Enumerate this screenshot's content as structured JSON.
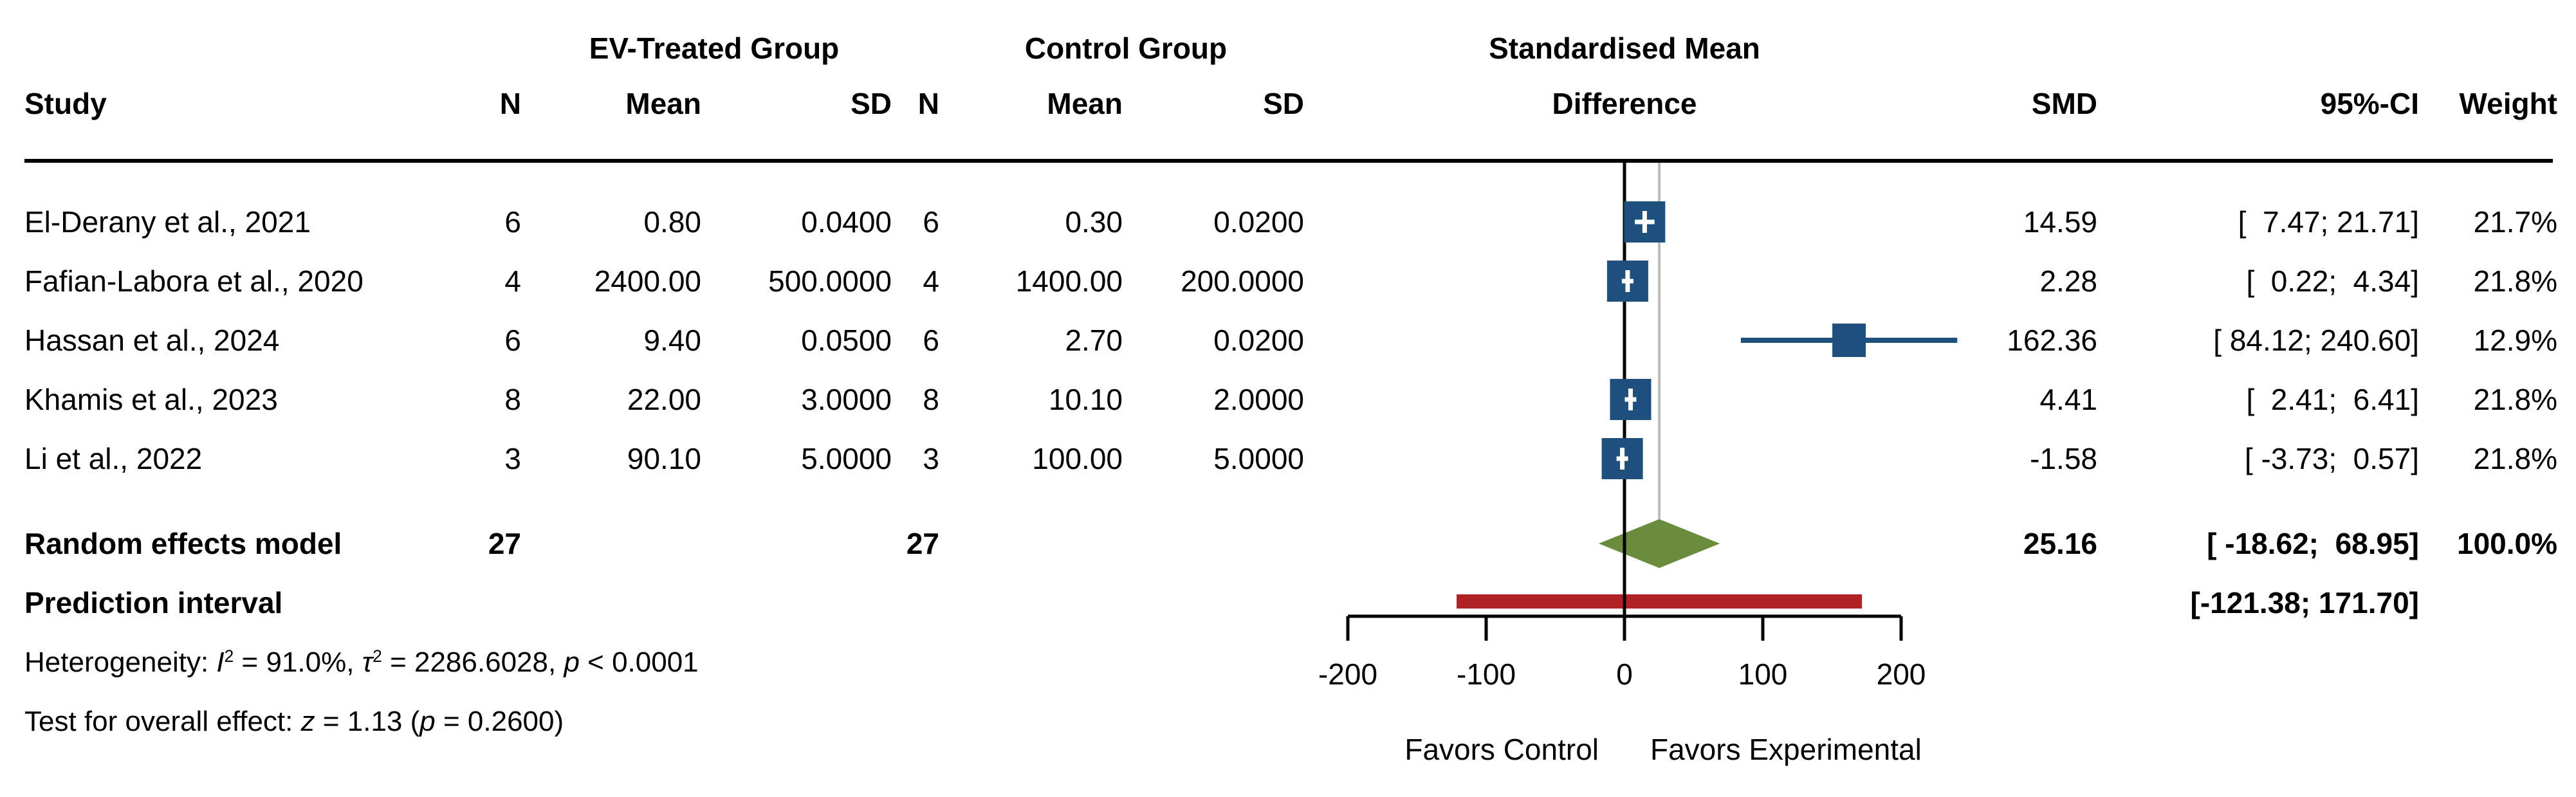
{
  "header": {
    "study": "Study",
    "group1": "EV-Treated Group",
    "group2": "Control Group",
    "smd_line1": "Standardised Mean",
    "smd_line2": "Difference",
    "n": "N",
    "mean": "Mean",
    "sd": "SD",
    "smd": "SMD",
    "ci": "95%-CI",
    "weight": "Weight"
  },
  "rows": [
    {
      "study": "El-Derany et al., 2021",
      "n1": "6",
      "mean1": "0.80",
      "sd1": "0.0400",
      "n2": "6",
      "mean2": "0.30",
      "sd2": "0.0200",
      "smd": "14.59",
      "ci": "[  7.47; 21.71]",
      "weight": "21.7%"
    },
    {
      "study": "Fafian-Labora et al., 2020",
      "n1": "4",
      "mean1": "2400.00",
      "sd1": "500.0000",
      "n2": "4",
      "mean2": "1400.00",
      "sd2": "200.0000",
      "smd": "2.28",
      "ci": "[  0.22;  4.34]",
      "weight": "21.8%"
    },
    {
      "study": "Hassan et al., 2024",
      "n1": "6",
      "mean1": "9.40",
      "sd1": "0.0500",
      "n2": "6",
      "mean2": "2.70",
      "sd2": "0.0200",
      "smd": "162.36",
      "ci": "[ 84.12; 240.60]",
      "weight": "12.9%"
    },
    {
      "study": "Khamis et al., 2023",
      "n1": "8",
      "mean1": "22.00",
      "sd1": "3.0000",
      "n2": "8",
      "mean2": "10.10",
      "sd2": "2.0000",
      "smd": "4.41",
      "ci": "[  2.41;  6.41]",
      "weight": "21.8%"
    },
    {
      "study": "Li et al., 2022",
      "n1": "3",
      "mean1": "90.10",
      "sd1": "5.0000",
      "n2": "3",
      "mean2": "100.00",
      "sd2": "5.0000",
      "smd": "-1.58",
      "ci": "[ -3.73;  0.57]",
      "weight": "21.8%"
    }
  ],
  "summary": {
    "re_label": "Random effects model",
    "re_n1": "27",
    "re_n2": "27",
    "re_smd": "25.16",
    "re_ci": "[ -18.62;  68.95]",
    "re_weight": "100.0%",
    "pi_label": "Prediction interval",
    "pi_ci": "[-121.38; 171.70]"
  },
  "footnotes": {
    "heterogeneity_parts": [
      [
        "",
        "Heterogeneity: "
      ],
      [
        "i",
        "I"
      ],
      [
        "sup",
        "2"
      ],
      [
        "",
        " = 91.0%, "
      ],
      [
        "i",
        "τ"
      ],
      [
        "sup",
        "2"
      ],
      [
        "",
        " = 2286.6028, "
      ],
      [
        "i",
        "p"
      ],
      [
        "",
        " < 0.0001"
      ]
    ],
    "test_parts": [
      [
        "",
        "Test for overall effect: "
      ],
      [
        "i",
        "z"
      ],
      [
        "",
        " = 1.13 ("
      ],
      [
        "i",
        "p"
      ],
      [
        "",
        " = 0.2600)"
      ]
    ]
  },
  "chart_data": {
    "type": "forest",
    "title": "Standardised Mean Difference",
    "x_axis": {
      "ticks": [
        -200,
        -100,
        0,
        100,
        200
      ],
      "min": -200,
      "max": 200
    },
    "favors_left": "Favors Control",
    "favors_right": "Favors Experimental",
    "studies": [
      {
        "label": "El-Derany et al., 2021",
        "smd": 14.59,
        "lo": 7.47,
        "hi": 21.71,
        "weight_pct": 21.7
      },
      {
        "label": "Fafian-Labora et al., 2020",
        "smd": 2.28,
        "lo": 0.22,
        "hi": 4.34,
        "weight_pct": 21.8
      },
      {
        "label": "Hassan et al., 2024",
        "smd": 162.36,
        "lo": 84.12,
        "hi": 240.6,
        "weight_pct": 12.9
      },
      {
        "label": "Khamis et al., 2023",
        "smd": 4.41,
        "lo": 2.41,
        "hi": 6.41,
        "weight_pct": 21.8
      },
      {
        "label": "Li et al., 2022",
        "smd": -1.58,
        "lo": -3.73,
        "hi": 0.57,
        "weight_pct": 21.8
      }
    ],
    "pooled": {
      "label": "Random effects model",
      "smd": 25.16,
      "lo": -18.62,
      "hi": 68.95,
      "weight_pct": 100.0
    },
    "prediction_interval": {
      "lo": -121.38,
      "hi": 171.7
    },
    "colors": {
      "square": "#1E507D",
      "ci_line": "#1E507D",
      "diamond": "#6A8C3C",
      "prediction_bar": "#B02125",
      "zero_line": "#000000",
      "ref_line": "#BBBBBB",
      "marker_cross": "#FFFFFF"
    }
  }
}
